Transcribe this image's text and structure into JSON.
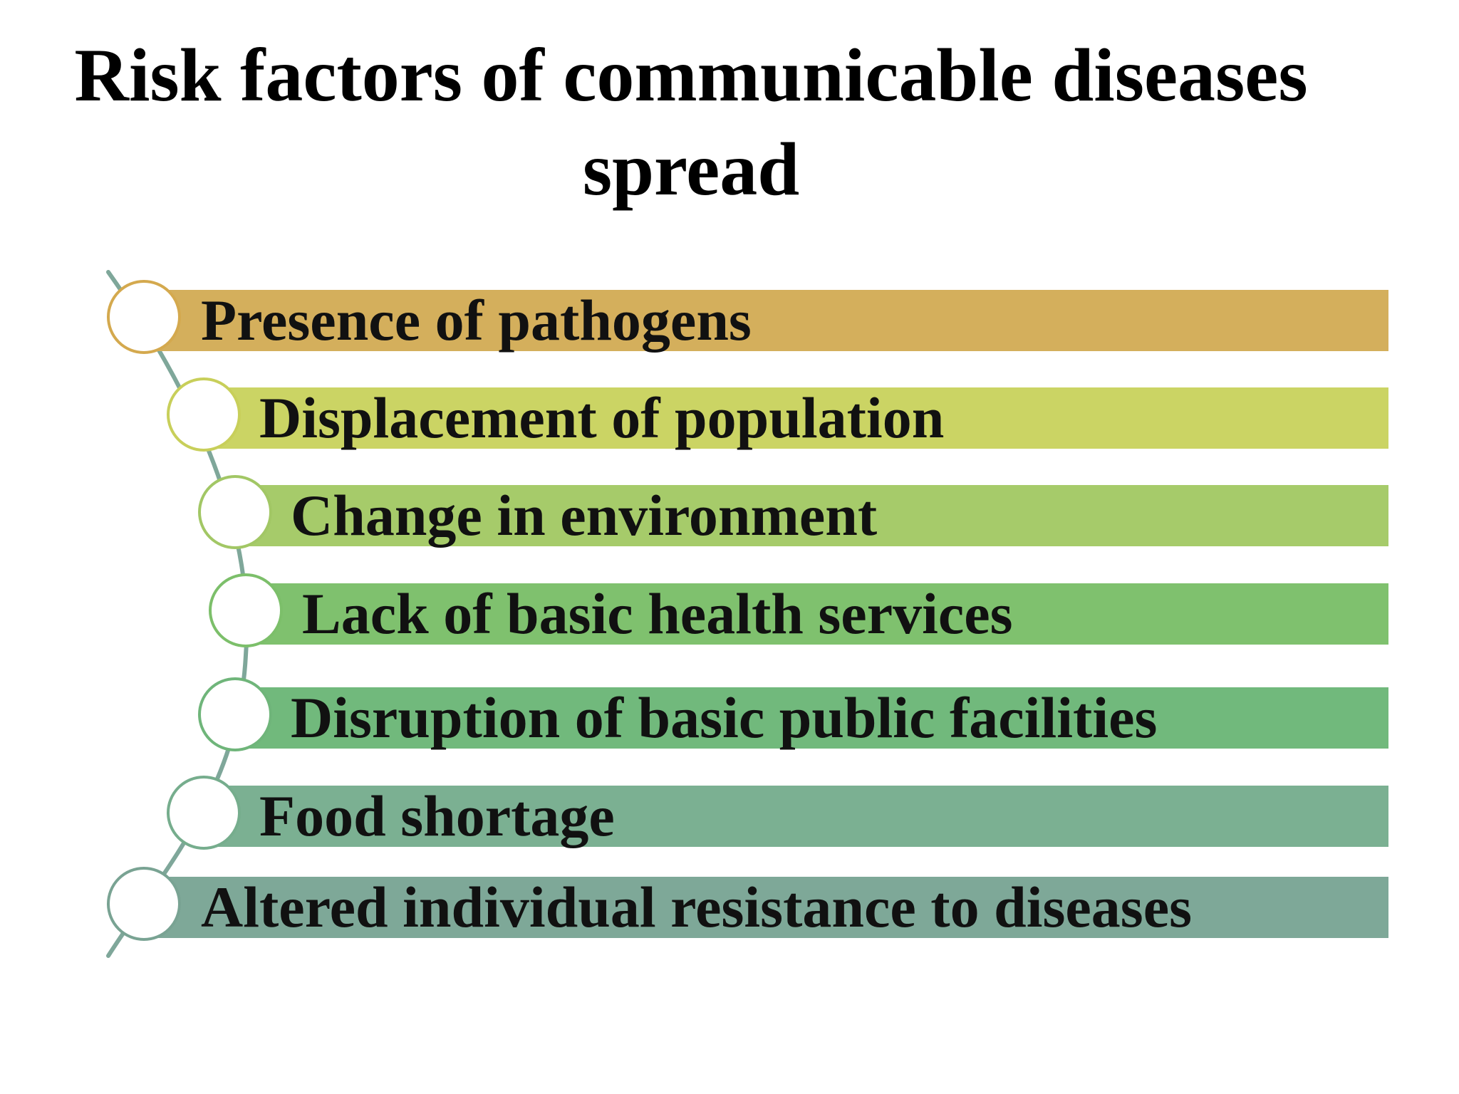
{
  "title": {
    "line1": "Risk factors of communicable diseases",
    "line2": "spread"
  },
  "factors": [
    {
      "label": "Presence of pathogens",
      "bar_color": "#d4af5c",
      "ring_color": "#d4a94e"
    },
    {
      "label": "Displacement of population",
      "bar_color": "#cbd464",
      "ring_color": "#c8cf5a"
    },
    {
      "label": "Change in environment",
      "bar_color": "#a6cb6a",
      "ring_color": "#a2c765"
    },
    {
      "label": "Lack of basic health services",
      "bar_color": "#7fc16e",
      "ring_color": "#7cbf6a"
    },
    {
      "label": "Disruption of basic public facilities",
      "bar_color": "#71b97c",
      "ring_color": "#6fb57a"
    },
    {
      "label": "Food shortage",
      "bar_color": "#7bb092",
      "ring_color": "#76ad8d"
    },
    {
      "label": "Altered individual resistance to diseases",
      "bar_color": "#7ea898",
      "ring_color": "#79a393"
    }
  ],
  "connector_color": "#7fa79a"
}
